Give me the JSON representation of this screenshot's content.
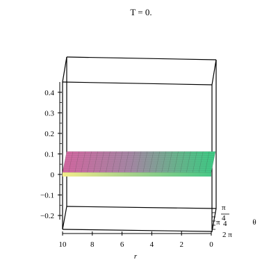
{
  "chart_data": {
    "type": "surface3d",
    "title": "T = 0.",
    "xlabel": "r",
    "ylabel": "θ",
    "zlabel": "",
    "r_range": [
      0,
      10
    ],
    "r_ticks": [
      {
        "value": 10,
        "label": "10"
      },
      {
        "value": 8,
        "label": "8"
      },
      {
        "value": 6,
        "label": "6"
      },
      {
        "value": 4,
        "label": "4"
      },
      {
        "value": 2,
        "label": "2"
      },
      {
        "value": 0,
        "label": "0"
      }
    ],
    "theta_tick_labels": [
      "π",
      "4",
      "π",
      "4",
      "2 π"
    ],
    "z_range": [
      -0.22,
      0.45
    ],
    "z_ticks": [
      {
        "value": 0.4,
        "label": "0.4"
      },
      {
        "value": 0.3,
        "label": "0.3"
      },
      {
        "value": 0.2,
        "label": "0.2"
      },
      {
        "value": 0.1,
        "label": "0.1"
      },
      {
        "value": 0,
        "label": "0"
      },
      {
        "value": -0.1,
        "label": "−0.1"
      },
      {
        "value": -0.2,
        "label": "−0.2"
      }
    ],
    "surface_value": 0,
    "colormap": [
      "#d4629a",
      "#b07a9a",
      "#8fa47a",
      "#4fc48a",
      "#e8e07a",
      "#f0f07a"
    ],
    "grid": false,
    "box": true
  }
}
